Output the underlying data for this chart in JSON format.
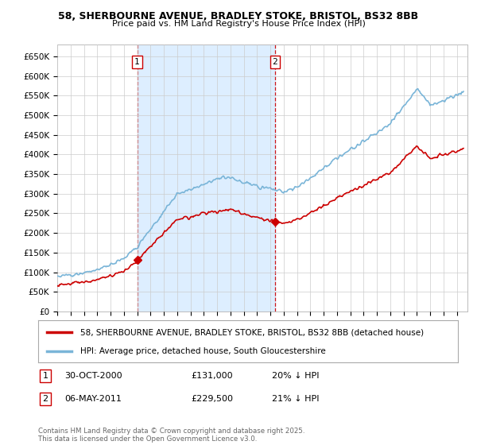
{
  "title": "58, SHERBOURNE AVENUE, BRADLEY STOKE, BRISTOL, BS32 8BB",
  "subtitle": "Price paid vs. HM Land Registry's House Price Index (HPI)",
  "ylim": [
    0,
    680000
  ],
  "yticks": [
    0,
    50000,
    100000,
    150000,
    200000,
    250000,
    300000,
    350000,
    400000,
    450000,
    500000,
    550000,
    600000,
    650000
  ],
  "ytick_labels": [
    "£0",
    "£50K",
    "£100K",
    "£150K",
    "£200K",
    "£250K",
    "£300K",
    "£350K",
    "£400K",
    "£450K",
    "£500K",
    "£550K",
    "£600K",
    "£650K"
  ],
  "hpi_color": "#7ab5d8",
  "price_color": "#cc0000",
  "vline_color": "#cc0000",
  "shade_color": "#ddeeff",
  "sale1_year": 2001.0,
  "sale2_year": 2011.35,
  "legend_line1": "58, SHERBOURNE AVENUE, BRADLEY STOKE, BRISTOL, BS32 8BB (detached house)",
  "legend_line2": "HPI: Average price, detached house, South Gloucestershire",
  "note1_date": "30-OCT-2000",
  "note1_price": "£131,000",
  "note1_hpi": "20% ↓ HPI",
  "note2_date": "06-MAY-2011",
  "note2_price": "£229,500",
  "note2_hpi": "21% ↓ HPI",
  "footer": "Contains HM Land Registry data © Crown copyright and database right 2025.\nThis data is licensed under the Open Government Licence v3.0.",
  "grid_color": "#cccccc",
  "background_color": "#ffffff"
}
